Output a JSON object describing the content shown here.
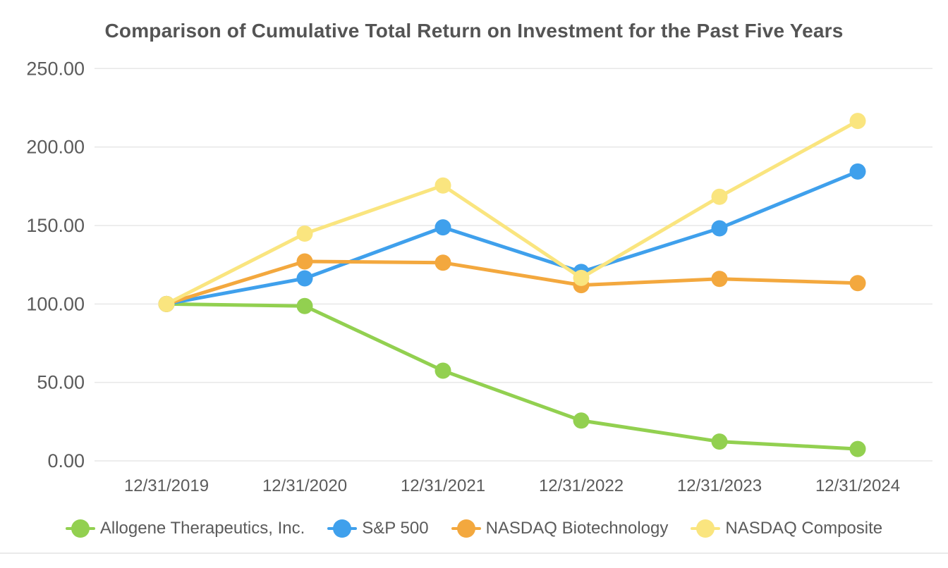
{
  "title": "Comparison of Cumulative Total Return on Investment for the Past Five Years",
  "colors": {
    "title_text": "#545454",
    "tick_text": "#5b5b5b",
    "gridline": "#e7e7e7",
    "background": "#ffffff",
    "bottom_rule": "#eaeaea"
  },
  "chart_data": {
    "type": "line",
    "title": "Comparison of Cumulative Total Return on Investment for the Past Five Years",
    "xlabel": "",
    "ylabel": "",
    "categories": [
      "12/31/2019",
      "12/31/2020",
      "12/31/2021",
      "12/31/2022",
      "12/31/2023",
      "12/31/2024"
    ],
    "series": [
      {
        "name": "Allogene Therapeutics, Inc.",
        "color": "#92d050",
        "values": [
          100.0,
          98.7,
          57.5,
          25.7,
          12.3,
          7.6
        ]
      },
      {
        "name": "S&P 500",
        "color": "#3fa0ec",
        "values": [
          100.0,
          116.3,
          148.8,
          120.4,
          148.2,
          184.4
        ]
      },
      {
        "name": "NASDAQ Biotechnology",
        "color": "#f3a83e",
        "values": [
          100.0,
          127.1,
          126.3,
          112.0,
          116.0,
          113.3
        ]
      },
      {
        "name": "NASDAQ Composite",
        "color": "#fae57f",
        "values": [
          100.0,
          144.8,
          175.5,
          116.6,
          168.3,
          216.6
        ]
      }
    ],
    "y_ticks": [
      {
        "value": 250,
        "label": "250.00"
      },
      {
        "value": 200,
        "label": "200.00"
      },
      {
        "value": 150,
        "label": "150.00"
      },
      {
        "value": 100,
        "label": "100.00"
      },
      {
        "value": 50,
        "label": "50.00"
      },
      {
        "value": 0,
        "label": "0.00"
      }
    ],
    "ylim": [
      0,
      250
    ],
    "grid": true,
    "legend_position": "bottom",
    "marker": "circle"
  }
}
